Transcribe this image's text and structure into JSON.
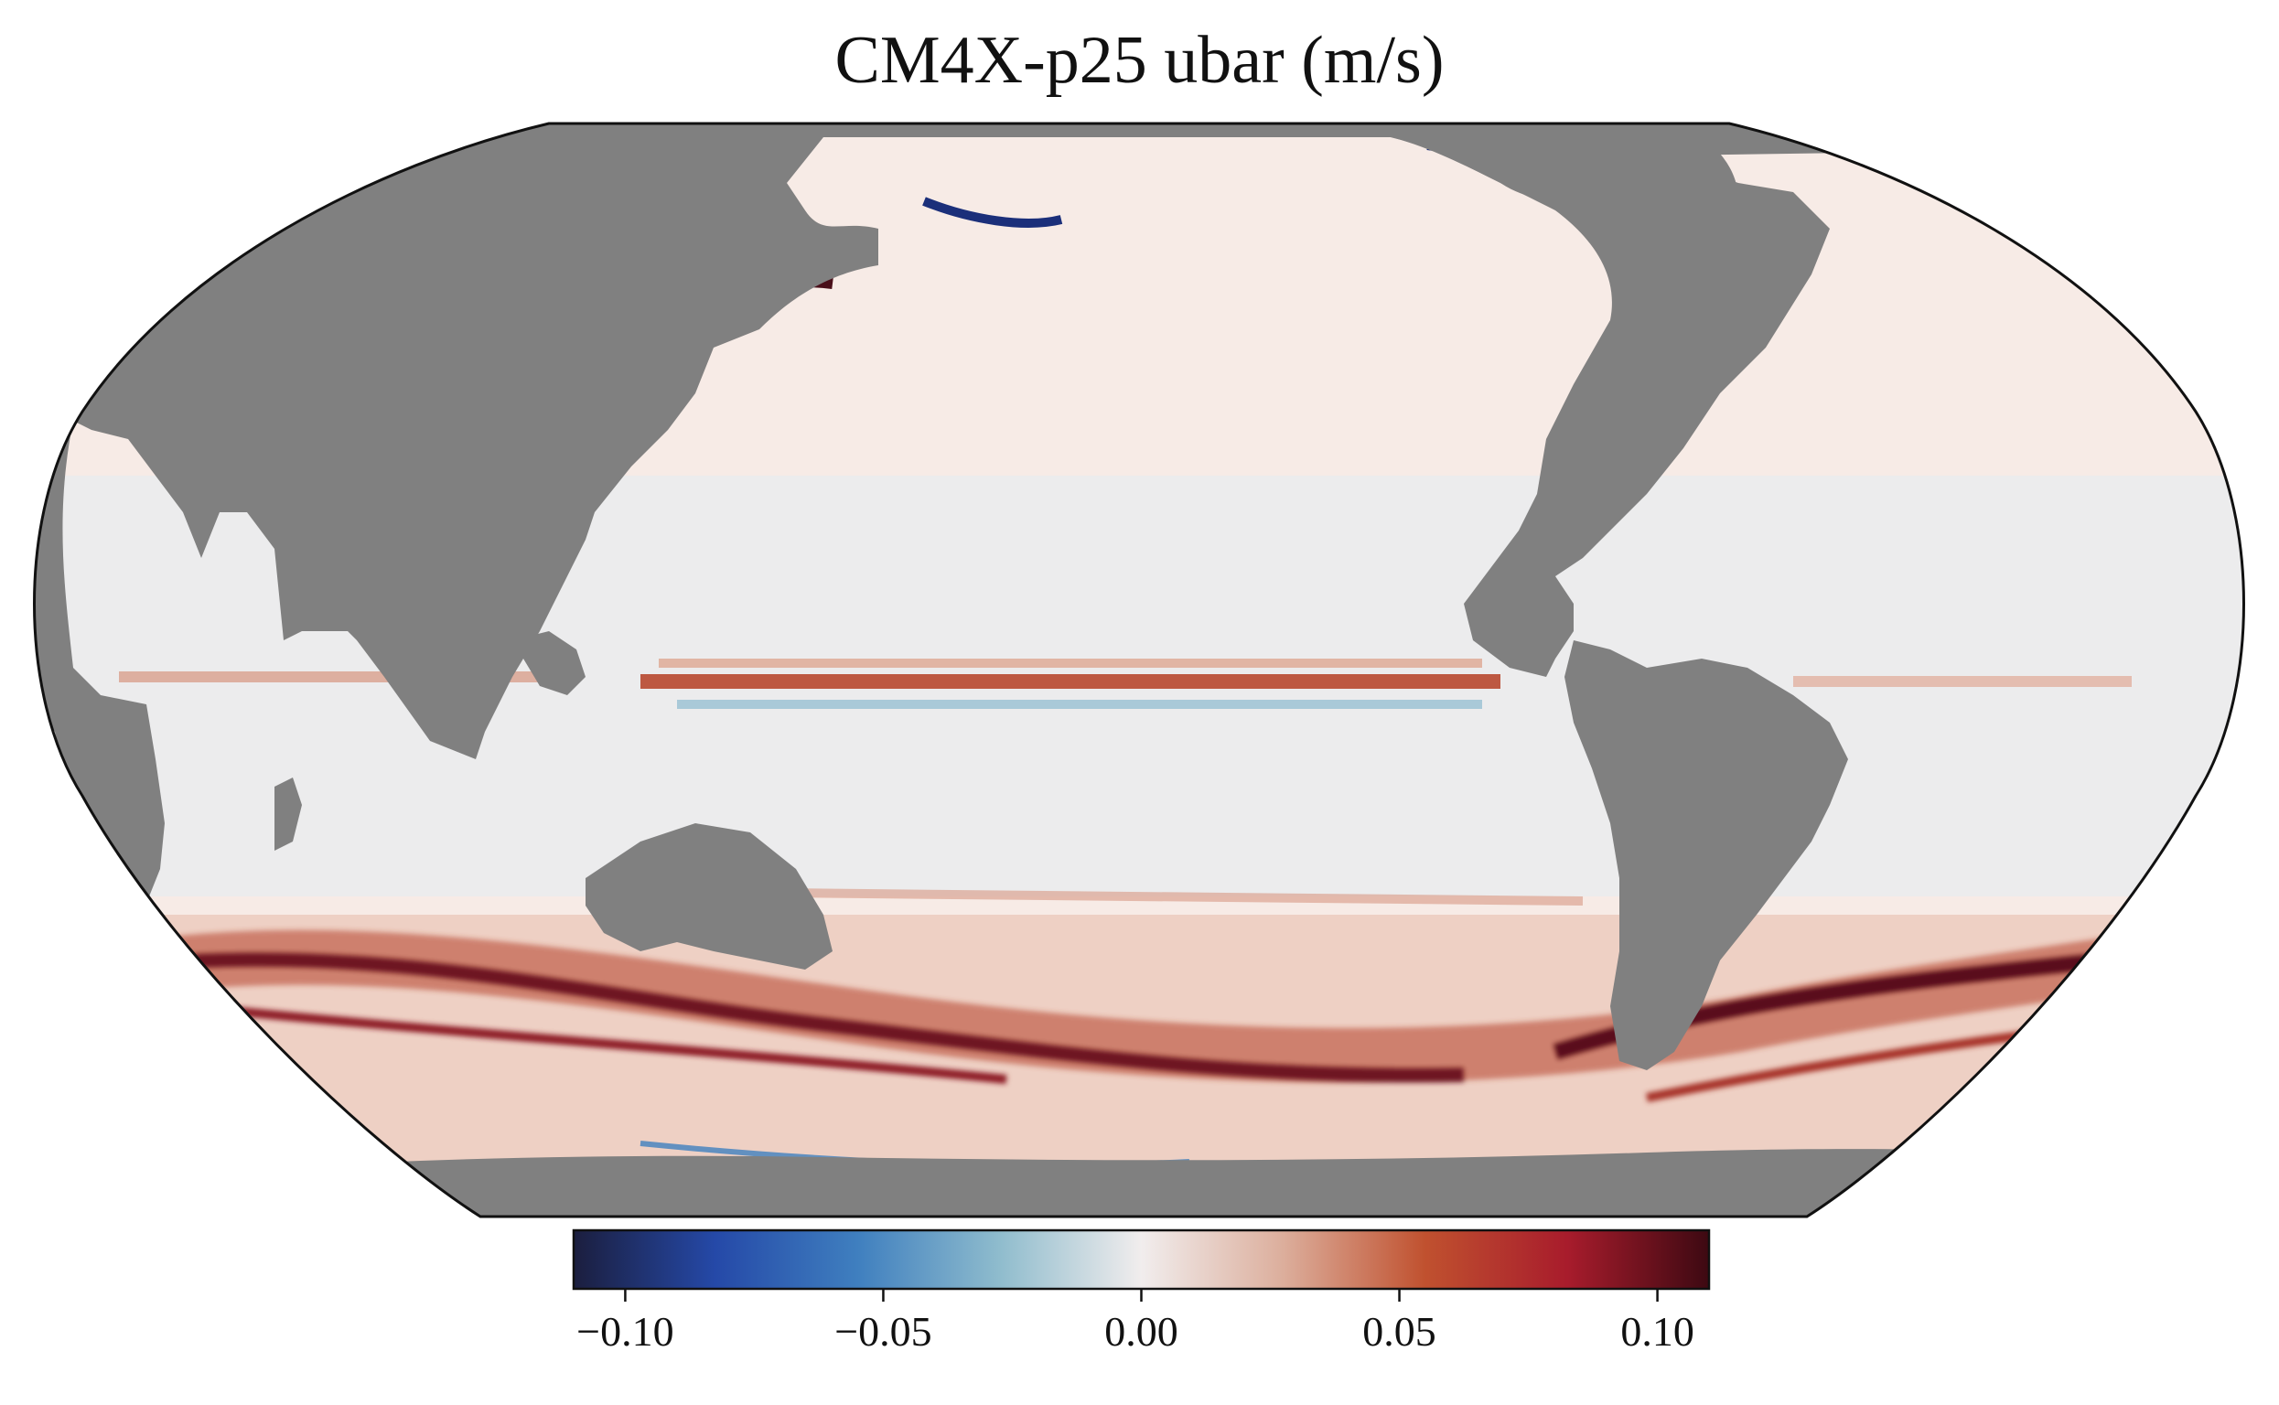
{
  "map": {
    "title": "CM4X-p25 ubar (m/s)",
    "projection": "Robinson",
    "land_color": "#808080",
    "ocean_base_color": "#f7ebe6",
    "colormap": "balance",
    "colorbar": {
      "orientation": "horizontal",
      "placement": "bottom",
      "range": [
        -0.11,
        0.11
      ],
      "ticks": [
        -0.1,
        -0.05,
        0.0,
        0.05,
        0.1
      ],
      "tick_labels": [
        "−0.10",
        "−0.05",
        "0.00",
        "0.05",
        "0.10"
      ],
      "colors": [
        "#1b1e3e",
        "#2549a8",
        "#3f7fbf",
        "#8fbccd",
        "#f1eded",
        "#dcae9c",
        "#c0512f",
        "#a81c2c",
        "#3d0912"
      ]
    },
    "features": [
      {
        "name": "Equatorial Pacific eastward band",
        "value_sign": "positive"
      },
      {
        "name": "Antarctic Circumpolar Current",
        "value_sign": "positive"
      },
      {
        "name": "Western boundary currents",
        "value_sign": "mixed"
      }
    ]
  }
}
